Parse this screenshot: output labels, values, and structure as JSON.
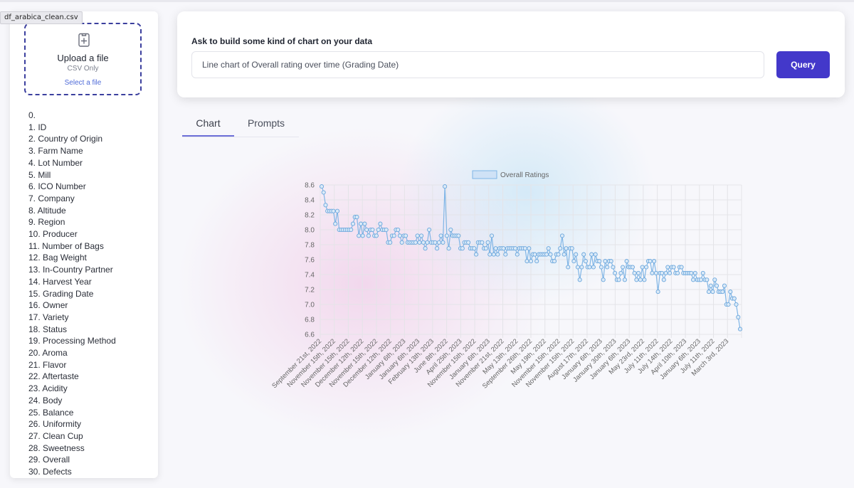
{
  "file_tab": "df_arabica_clean.csv",
  "upload": {
    "title": "Upload a file",
    "subtitle": "CSV Only",
    "link": "Select a file"
  },
  "columns": [
    "0.",
    "1. ID",
    "2. Country of Origin",
    "3. Farm Name",
    "4. Lot Number",
    "5. Mill",
    "6. ICO Number",
    "7. Company",
    "8. Altitude",
    "9. Region",
    "10. Producer",
    "11. Number of Bags",
    "12. Bag Weight",
    "13. In-Country Partner",
    "14. Harvest Year",
    "15. Grading Date",
    "16. Owner",
    "17. Variety",
    "18. Status",
    "19. Processing Method",
    "20. Aroma",
    "21. Flavor",
    "22. Aftertaste",
    "23. Acidity",
    "24. Body",
    "25. Balance",
    "26. Uniformity",
    "27. Clean Cup",
    "28. Sweetness",
    "29. Overall",
    "30. Defects"
  ],
  "query": {
    "label": "Ask to build some kind of chart on your data",
    "value": "Line chart of Overall rating over time (Grading Date)",
    "button": "Query"
  },
  "tabs": [
    {
      "label": "Chart",
      "active": true
    },
    {
      "label": "Prompts",
      "active": false
    }
  ],
  "chart_data": {
    "type": "line",
    "legend": "Overall Ratings",
    "legend_position": "top",
    "grid": true,
    "ylim": [
      6.6,
      8.6
    ],
    "yticks": [
      "8.6",
      "8.4",
      "8.2",
      "8.0",
      "7.8",
      "7.6",
      "7.4",
      "7.2",
      "7.0",
      "6.8",
      "6.6"
    ],
    "colors": {
      "line": "#7fb5e6",
      "fill": "#cfe2f6"
    },
    "xtick_labels": [
      "September 21st, 2022",
      "November 15th, 2022",
      "November 15th, 2022",
      "December 12th, 2022",
      "November 15th, 2022",
      "December 12th, 2022",
      "January 6th, 2023",
      "January 6th, 2023",
      "February 13th, 2023",
      "June 8th, 2022",
      "April 25th, 2023",
      "November 15th, 2022",
      "January 6th, 2023",
      "November 21st, 2022",
      "May 13th, 2022",
      "September 26th, 2022",
      "May 19th, 2022",
      "November 15th, 2022",
      "November 15th, 2022",
      "August 17th, 2022",
      "January 6th, 2023",
      "January 30th, 2023",
      "January 6th, 2023",
      "May 23rd, 2022",
      "July 11th, 2022",
      "July 14th, 2022",
      "April 10th, 2023",
      "January 6th, 2023",
      "July 11th, 2022",
      "March 3rd, 2023"
    ],
    "values": [
      8.58,
      8.5,
      8.33,
      8.25,
      8.25,
      8.25,
      8.25,
      8.08,
      8.25,
      8.0,
      8.0,
      8.0,
      8.0,
      8.0,
      8.0,
      8.0,
      8.08,
      8.17,
      8.17,
      7.92,
      8.08,
      7.92,
      8.08,
      8.0,
      7.92,
      8.0,
      8.0,
      7.92,
      7.92,
      8.0,
      8.08,
      8.0,
      8.0,
      8.0,
      7.83,
      7.83,
      7.92,
      7.92,
      8.0,
      8.0,
      7.92,
      7.83,
      7.92,
      7.92,
      7.83,
      7.83,
      7.83,
      7.83,
      7.83,
      7.92,
      7.83,
      7.92,
      7.83,
      7.75,
      7.83,
      8.0,
      7.83,
      7.83,
      7.83,
      7.75,
      7.83,
      7.92,
      7.83,
      8.58,
      7.92,
      7.75,
      8.0,
      7.92,
      7.92,
      7.92,
      7.92,
      7.75,
      7.75,
      7.83,
      7.83,
      7.83,
      7.75,
      7.75,
      7.75,
      7.67,
      7.83,
      7.83,
      7.83,
      7.75,
      7.75,
      7.83,
      7.67,
      7.92,
      7.67,
      7.75,
      7.67,
      7.75,
      7.75,
      7.75,
      7.67,
      7.75,
      7.75,
      7.75,
      7.75,
      7.75,
      7.67,
      7.75,
      7.75,
      7.75,
      7.75,
      7.58,
      7.75,
      7.58,
      7.67,
      7.67,
      7.58,
      7.67,
      7.67,
      7.67,
      7.67,
      7.67,
      7.75,
      7.67,
      7.58,
      7.58,
      7.67,
      7.67,
      7.75,
      7.92,
      7.67,
      7.75,
      7.5,
      7.75,
      7.75,
      7.58,
      7.67,
      7.5,
      7.33,
      7.5,
      7.67,
      7.58,
      7.5,
      7.5,
      7.67,
      7.5,
      7.67,
      7.58,
      7.58,
      7.5,
      7.33,
      7.58,
      7.5,
      7.58,
      7.58,
      7.5,
      7.42,
      7.33,
      7.33,
      7.42,
      7.5,
      7.33,
      7.58,
      7.5,
      7.5,
      7.5,
      7.42,
      7.33,
      7.42,
      7.33,
      7.5,
      7.33,
      7.5,
      7.58,
      7.58,
      7.42,
      7.58,
      7.42,
      7.17,
      7.42,
      7.42,
      7.33,
      7.42,
      7.5,
      7.42,
      7.5,
      7.5,
      7.42,
      7.42,
      7.5,
      7.5,
      7.42,
      7.42,
      7.42,
      7.42,
      7.42,
      7.33,
      7.42,
      7.33,
      7.33,
      7.33,
      7.42,
      7.33,
      7.33,
      7.17,
      7.25,
      7.17,
      7.33,
      7.25,
      7.17,
      7.17,
      7.17,
      7.25,
      7.0,
      7.0,
      7.17,
      7.08,
      7.08,
      7.0,
      6.83,
      6.67
    ]
  }
}
